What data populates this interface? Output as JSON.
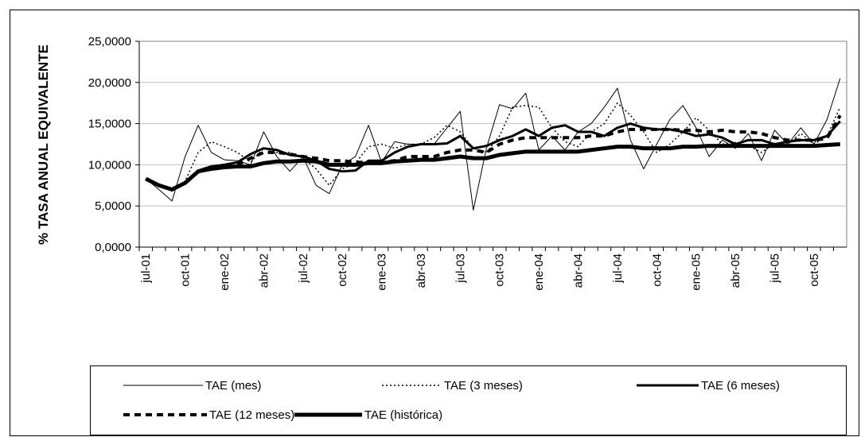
{
  "chart_data": {
    "type": "line",
    "y_label": "% TASA ANUAL EQUIVALENTE",
    "categories": [
      "jul-01",
      null,
      null,
      "oct-01",
      null,
      null,
      "ene-02",
      null,
      null,
      "abr-02",
      null,
      null,
      "jul-02",
      null,
      null,
      "oct-02",
      null,
      null,
      "ene-03",
      null,
      null,
      "abr-03",
      null,
      null,
      "jul-03",
      null,
      null,
      "oct-03",
      null,
      null,
      "ene-04",
      null,
      null,
      "abr-04",
      null,
      null,
      "jul-04",
      null,
      null,
      "oct-04",
      null,
      null,
      "ene-05",
      null,
      null,
      "abr-05",
      null,
      null,
      "jul-05",
      null,
      null,
      "oct-05",
      null,
      null
    ],
    "ylim": [
      0,
      25
    ],
    "yticks": [
      {
        "value": 0,
        "label": "0,0000"
      },
      {
        "value": 5,
        "label": "5,0000"
      },
      {
        "value": 10,
        "label": "10,0000"
      },
      {
        "value": 15,
        "label": "15,0000"
      },
      {
        "value": 20,
        "label": "20,0000"
      },
      {
        "value": 25,
        "label": "25,0000"
      }
    ],
    "grid": true,
    "legend": "bottom",
    "series": [
      {
        "name": "TAE (mes)",
        "color": "#000000",
        "line_width": 1,
        "dash": "none",
        "values": [
          8.3,
          7,
          5.6,
          11,
          14.8,
          11.5,
          10.6,
          10.5,
          10,
          14,
          11,
          9.2,
          11,
          7.5,
          6.5,
          10,
          11,
          14.8,
          10.3,
          12.8,
          12.5,
          12.5,
          12.5,
          14.5,
          16.5,
          4.5,
          12,
          17.3,
          16.8,
          18.7,
          11.8,
          13.5,
          11.8,
          14,
          15,
          17,
          19.3,
          13,
          9.5,
          12.5,
          15.5,
          17.2,
          14.5,
          11,
          13,
          12,
          13.8,
          10.5,
          14.2,
          12.5,
          14.5,
          12.5,
          15.5,
          20.5
        ]
      },
      {
        "name": "TAE (3 meses)",
        "color": "#000000",
        "line_width": 1.5,
        "dash": "2,3",
        "values": [
          8.3,
          7.5,
          6.8,
          8,
          11.5,
          12.8,
          12.2,
          11.5,
          10.3,
          12,
          11.5,
          11.5,
          10.8,
          9.5,
          7.5,
          9.5,
          10.2,
          12.2,
          12.5,
          12,
          12.5,
          12.5,
          13.3,
          14.8,
          14,
          12,
          11.5,
          13.5,
          17,
          17.2,
          17,
          14.5,
          12.8,
          12.2,
          14,
          15,
          17.5,
          16,
          14,
          11.5,
          12.5,
          14,
          15.7,
          14.2,
          12.5,
          12.7,
          12.3,
          11.5,
          12.6,
          12.5,
          13.8,
          12.5,
          13.5,
          17
        ]
      },
      {
        "name": "TAE (6 meses)",
        "color": "#000000",
        "line_width": 3,
        "dash": "none",
        "values": [
          8.3,
          7.5,
          7,
          7.8,
          9.3,
          9.8,
          10,
          10.3,
          11.3,
          12,
          11.8,
          11.2,
          11,
          10.5,
          9.5,
          9.2,
          9.3,
          10.5,
          10.5,
          11.5,
          12.2,
          12.5,
          12.5,
          12.6,
          13.5,
          12,
          12.3,
          13,
          13.5,
          14.3,
          13.5,
          14.5,
          14.8,
          14,
          14,
          13.5,
          14.5,
          15,
          14.5,
          14.3,
          14.3,
          14,
          13.5,
          13.7,
          13.3,
          12.5,
          13,
          13,
          12.5,
          12.8,
          13,
          13,
          13.5,
          15.3
        ]
      },
      {
        "name": "TAE (12 meses)",
        "color": "#000000",
        "line_width": 4,
        "dash": "8,6",
        "values": [
          8.3,
          7.5,
          7,
          7.8,
          9.2,
          9.7,
          9.8,
          10,
          10.8,
          11.5,
          11.5,
          11.3,
          11,
          10.8,
          10.5,
          10.5,
          10.3,
          10.3,
          10.3,
          10.5,
          11,
          11,
          11,
          11.5,
          11.8,
          11.8,
          11.5,
          12.5,
          13,
          13.3,
          13.3,
          13.3,
          13.3,
          13.3,
          13.5,
          13.5,
          14,
          14.3,
          14.3,
          14.3,
          14.3,
          14.2,
          14.2,
          14,
          14.2,
          14,
          14,
          13.8,
          13.3,
          13,
          13,
          13,
          13.2,
          16
        ]
      },
      {
        "name": "TAE (histórica)",
        "color": "#000000",
        "line_width": 5,
        "dash": "none",
        "values": [
          8.3,
          7.5,
          7,
          7.8,
          9.2,
          9.5,
          9.7,
          9.8,
          9.8,
          10.2,
          10.4,
          10.4,
          10.5,
          10.4,
          10,
          10,
          10,
          10.2,
          10.2,
          10.4,
          10.5,
          10.6,
          10.6,
          10.8,
          11,
          10.8,
          10.8,
          11.2,
          11.4,
          11.6,
          11.6,
          11.6,
          11.6,
          11.6,
          11.8,
          12,
          12.2,
          12.2,
          12,
          12,
          12,
          12.2,
          12.2,
          12.3,
          12.3,
          12.3,
          12.3,
          12.3,
          12.3,
          12.3,
          12.3,
          12.3,
          12.4,
          12.5
        ]
      }
    ]
  }
}
